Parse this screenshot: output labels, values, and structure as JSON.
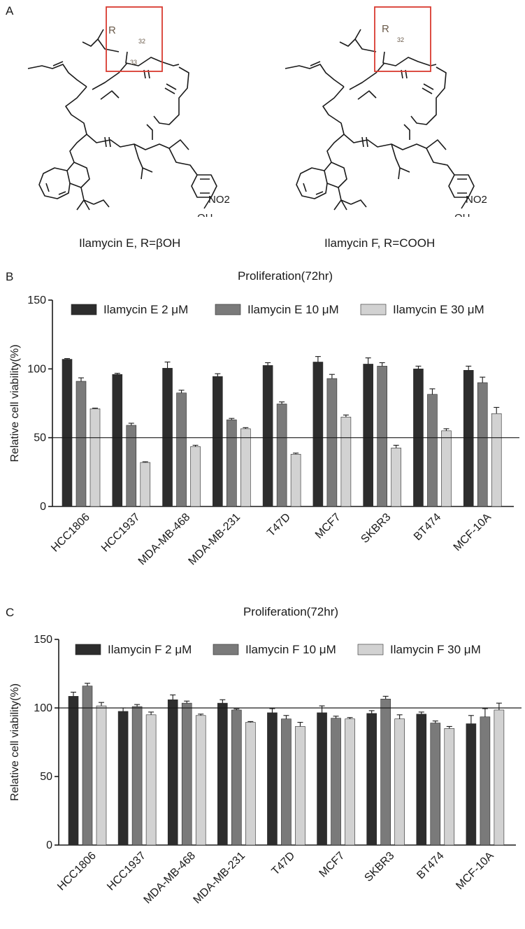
{
  "panels": {
    "a": "A",
    "b": "B",
    "c": "C"
  },
  "structures": {
    "left": {
      "name": "Ilamycin E, R=βOH",
      "r_symbol": "R",
      "position_a": "33",
      "position_b": "32",
      "nitro": "NO2",
      "hydroxyl": "OH"
    },
    "right": {
      "name": "Ilamycin F, R=COOH",
      "r_symbol": "R",
      "position_b": "32",
      "nitro": "NO2",
      "hydroxyl": "OH"
    }
  },
  "colors": {
    "dark": "#2d2d2d",
    "medium": "#7a7a7a",
    "light": "#d2d2d2",
    "highlight": "#d93a30"
  },
  "chart_data": [
    {
      "type": "bar",
      "title": "Proliferation(72hr)",
      "ylabel": "Relative cell viability(%)",
      "xlabel": "",
      "ylim": [
        0,
        150
      ],
      "yticks": [
        0,
        50,
        100,
        150
      ],
      "reference_line": 50,
      "legend_position": "top",
      "categories": [
        "HCC1806",
        "HCC1937",
        "MDA-MB-468",
        "MDA-MB-231",
        "T47D",
        "MCF7",
        "SKBR3",
        "BT474",
        "MCF-10A"
      ],
      "series": [
        {
          "name": "Ilamycin E 2 μM",
          "values": [
            107,
            96,
            100.5,
            94.5,
            102.5,
            105,
            103.5,
            100,
            99
          ],
          "errors": [
            0.5,
            0.8,
            4.5,
            2,
            2,
            4,
            4.5,
            2,
            3
          ]
        },
        {
          "name": "Ilamycin E 10 μM",
          "values": [
            91,
            59,
            82.5,
            63,
            74.5,
            93,
            102,
            81.5,
            90
          ],
          "errors": [
            2.5,
            1.5,
            2,
            1,
            1.5,
            3,
            2.5,
            4,
            4
          ]
        },
        {
          "name": "Ilamycin E 30 μM",
          "values": [
            71,
            32,
            43.5,
            56.5,
            38,
            65,
            42.5,
            55,
            67.5
          ],
          "errors": [
            0.5,
            0.5,
            1,
            0.8,
            0.8,
            1.5,
            2,
            1.5,
            4.5
          ]
        }
      ]
    },
    {
      "type": "bar",
      "title": "Proliferation(72hr)",
      "ylabel": "Relative cell viability(%)",
      "xlabel": "",
      "ylim": [
        0,
        150
      ],
      "yticks": [
        0,
        50,
        100,
        150
      ],
      "reference_line": 100,
      "legend_position": "top",
      "categories": [
        "HCC1806",
        "HCC1937",
        "MDA-MB-468",
        "MDA-MB-231",
        "T47D",
        "MCF7",
        "SKBR3",
        "BT474",
        "MCF-10A"
      ],
      "series": [
        {
          "name": "Ilamycin F 2 μM",
          "values": [
            108.5,
            97.5,
            106,
            103.5,
            96.5,
            96.5,
            96,
            95.5,
            88.5
          ],
          "errors": [
            3,
            2.5,
            3.5,
            2.5,
            3,
            5,
            2,
            1.5,
            6
          ]
        },
        {
          "name": "Ilamycin F 10 μM",
          "values": [
            116,
            101,
            103.5,
            98.5,
            92,
            92.5,
            106.5,
            89,
            93.5
          ],
          "errors": [
            2,
            1.5,
            1.5,
            0.8,
            2.5,
            1.5,
            2,
            1.5,
            6
          ]
        },
        {
          "name": "Ilamycin F 30 μM",
          "values": [
            101.5,
            95,
            94.5,
            89.5,
            86.5,
            92,
            92,
            85,
            98.5
          ],
          "errors": [
            2.5,
            2,
            1,
            0.6,
            3,
            1,
            3,
            1.5,
            5
          ]
        }
      ]
    }
  ]
}
